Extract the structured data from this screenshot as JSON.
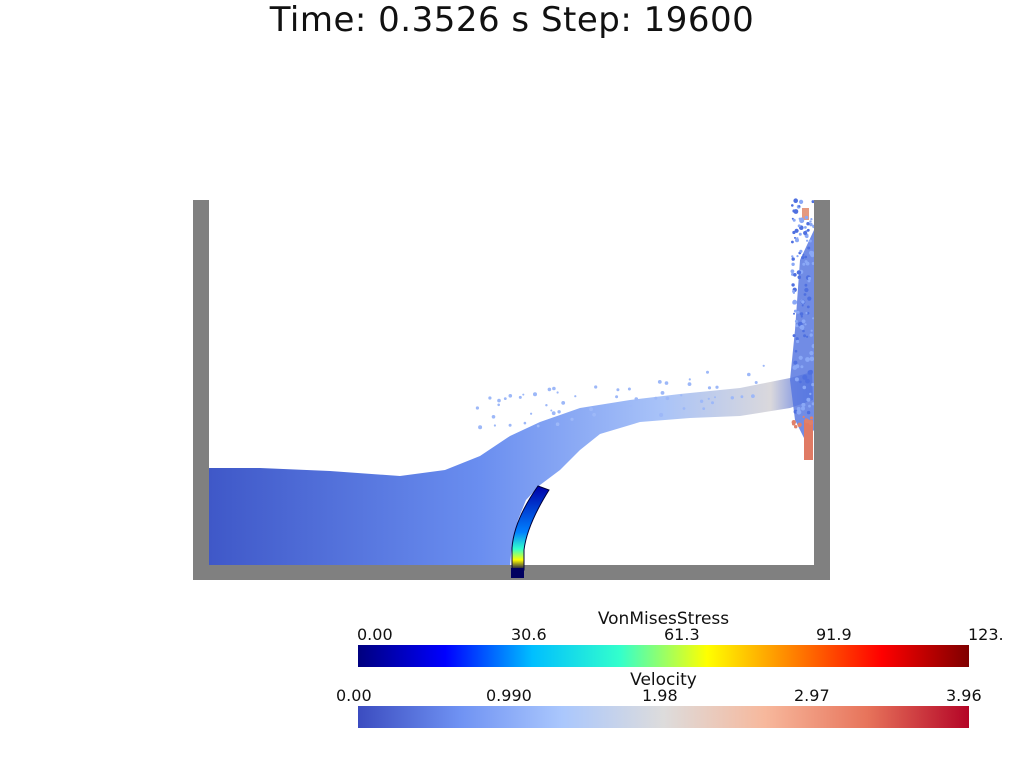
{
  "title": "Time: 0.3526 s  Step: 19600",
  "colorbars": [
    {
      "name": "VonMisesStress",
      "ticks": [
        "0.00",
        "30.6",
        "61.3",
        "91.9",
        "123."
      ],
      "colors": [
        "#00007f",
        "#0000ff",
        "#00bfff",
        "#33ffcc",
        "#ffff00",
        "#ff7f00",
        "#ff0000",
        "#7f0000"
      ]
    },
    {
      "name": "Velocity",
      "ticks": [
        "0.00",
        "0.990",
        "1.98",
        "2.97",
        "3.96"
      ],
      "colors": [
        "#3b4cc0",
        "#6f92f3",
        "#aac7fd",
        "#dddcdc",
        "#f7b89c",
        "#e7745b",
        "#b40426"
      ]
    }
  ],
  "colors": {
    "container": "#808080",
    "fluid_base": "#4a67d8"
  }
}
